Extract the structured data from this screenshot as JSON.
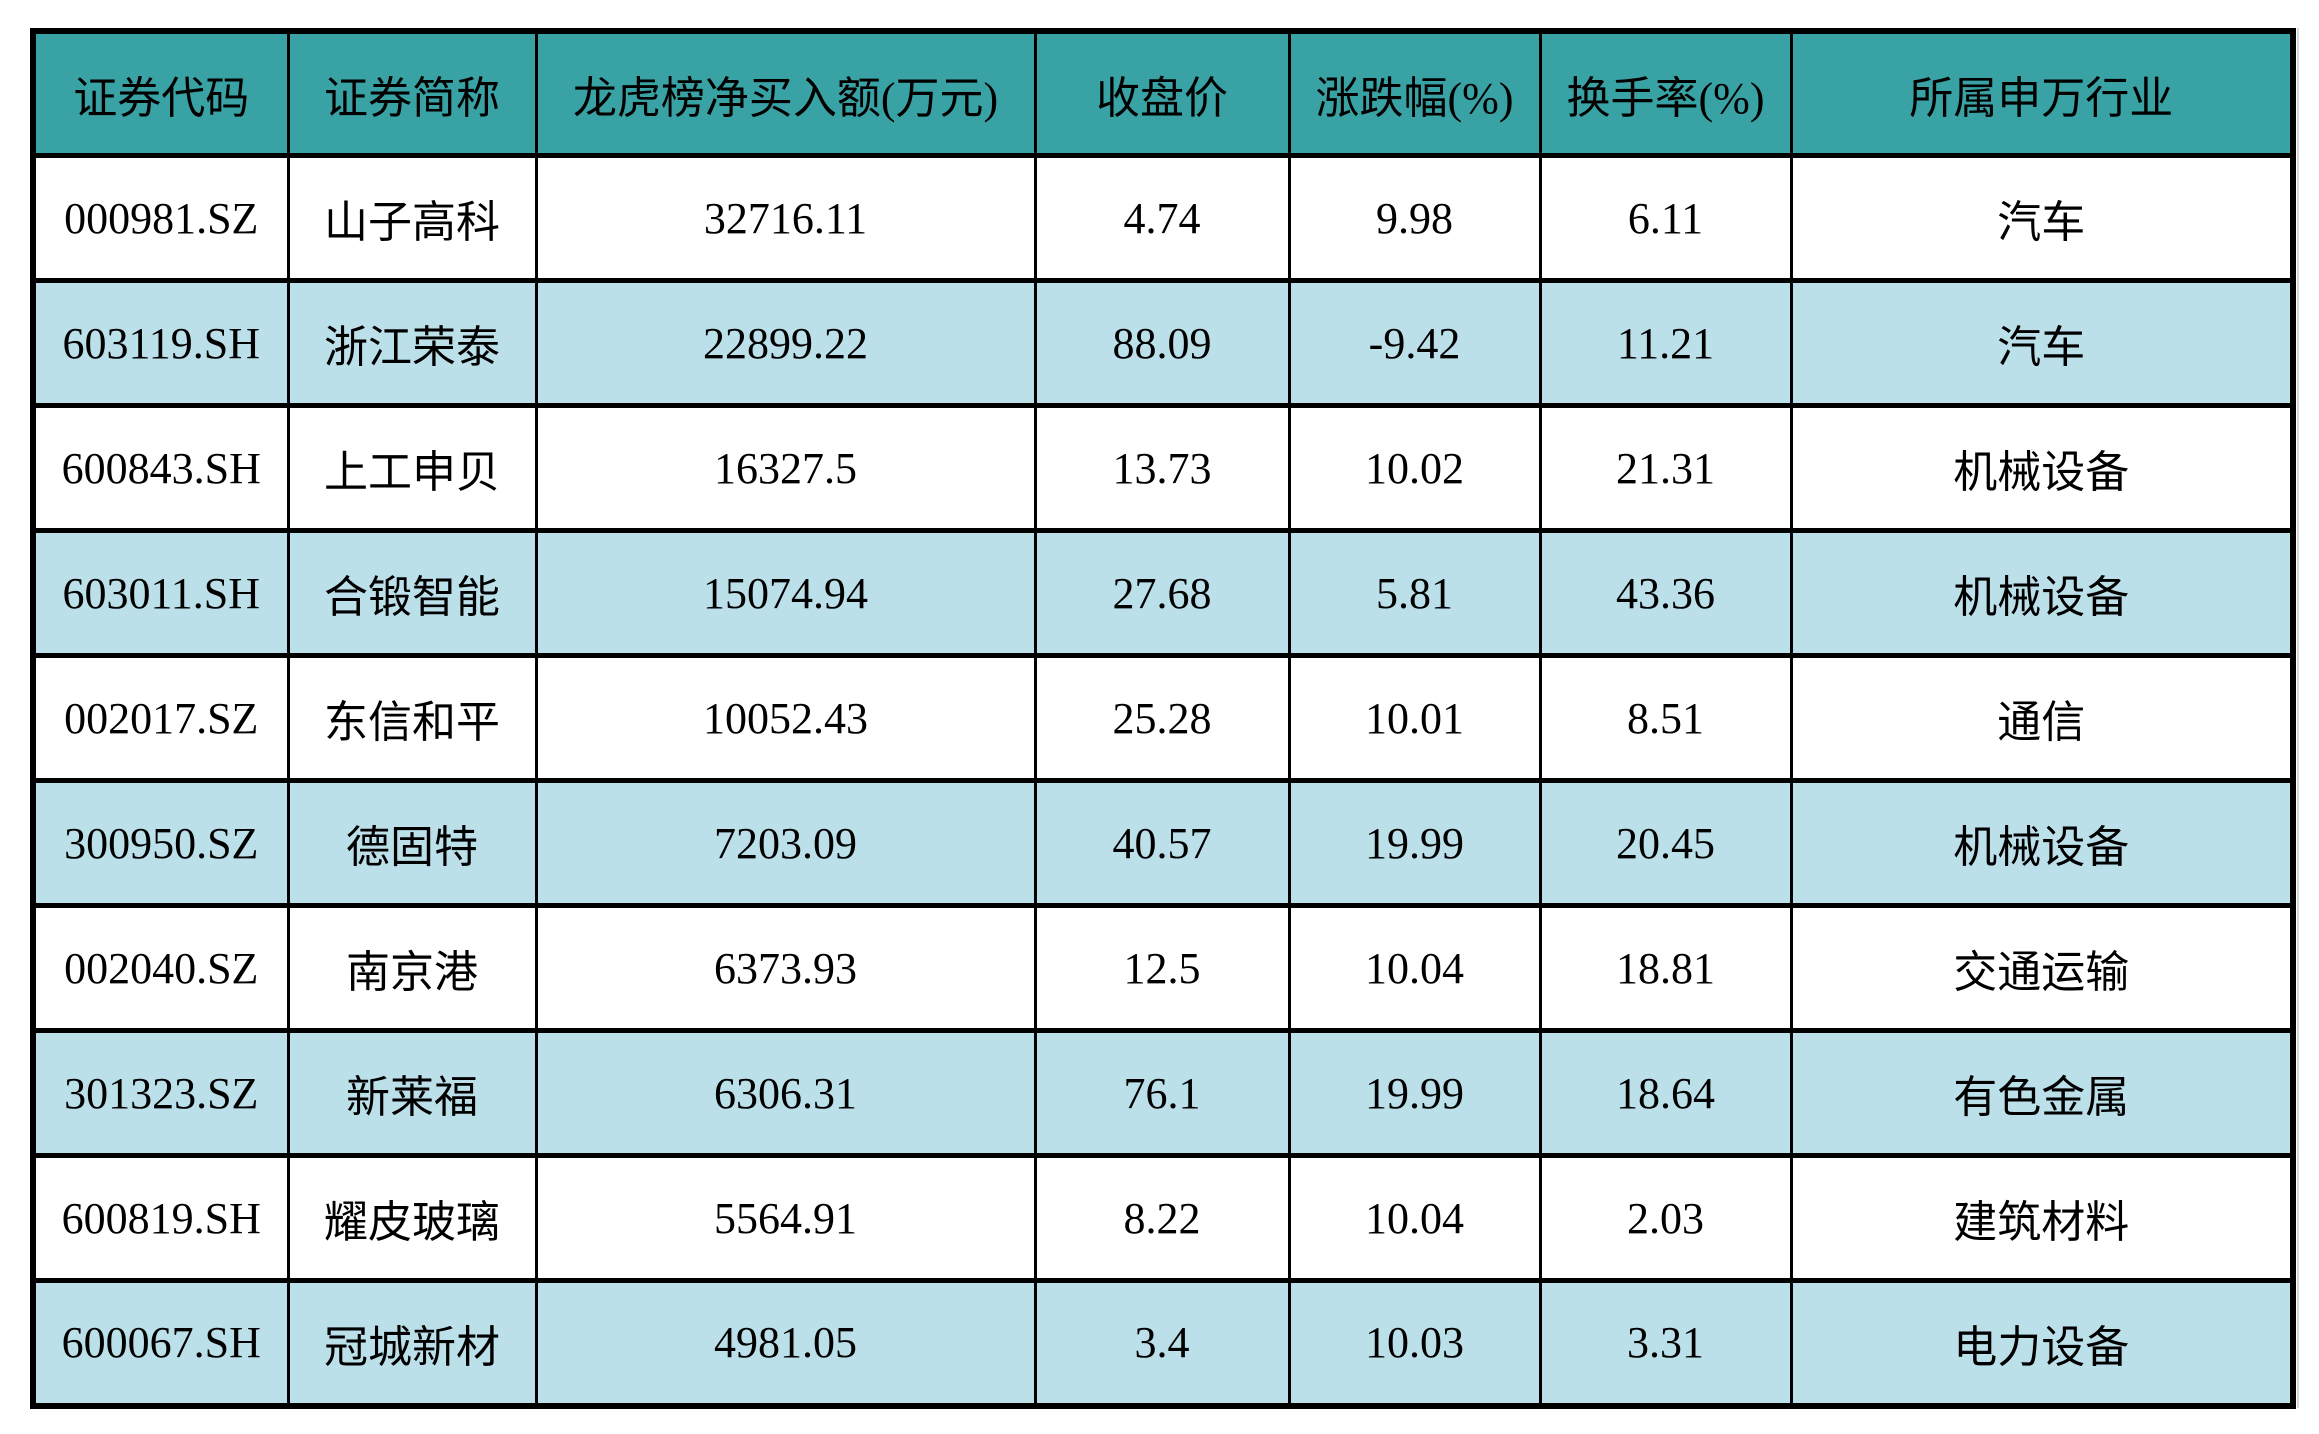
{
  "chart_data": {
    "type": "table",
    "columns": [
      {
        "key": "code",
        "label": "证券代码"
      },
      {
        "key": "name",
        "label": "证券简称"
      },
      {
        "key": "net_buy",
        "label": "龙虎榜净买入额(万元)"
      },
      {
        "key": "close",
        "label": "收盘价"
      },
      {
        "key": "change_pct",
        "label": "涨跌幅(%)"
      },
      {
        "key": "turnover_pct",
        "label": "换手率(%)"
      },
      {
        "key": "industry",
        "label": "所属申万行业"
      }
    ],
    "rows": [
      [
        "000981.SZ",
        "山子高科",
        "32716.11",
        "4.74",
        "9.98",
        "6.11",
        "汽车"
      ],
      [
        "603119.SH",
        "浙江荣泰",
        "22899.22",
        "88.09",
        "-9.42",
        "11.21",
        "汽车"
      ],
      [
        "600843.SH",
        "上工申贝",
        "16327.5",
        "13.73",
        "10.02",
        "21.31",
        "机械设备"
      ],
      [
        "603011.SH",
        "合锻智能",
        "15074.94",
        "27.68",
        "5.81",
        "43.36",
        "机械设备"
      ],
      [
        "002017.SZ",
        "东信和平",
        "10052.43",
        "25.28",
        "10.01",
        "8.51",
        "通信"
      ],
      [
        "300950.SZ",
        "德固特",
        "7203.09",
        "40.57",
        "19.99",
        "20.45",
        "机械设备"
      ],
      [
        "002040.SZ",
        "南京港",
        "6373.93",
        "12.5",
        "10.04",
        "18.81",
        "交通运输"
      ],
      [
        "301323.SZ",
        "新莱福",
        "6306.31",
        "76.1",
        "19.99",
        "18.64",
        "有色金属"
      ],
      [
        "600819.SH",
        "耀皮玻璃",
        "5564.91",
        "8.22",
        "10.04",
        "2.03",
        "建筑材料"
      ],
      [
        "600067.SH",
        "冠城新材",
        "4981.05",
        "3.4",
        "10.03",
        "3.31",
        "电力设备"
      ]
    ]
  },
  "colors": {
    "header_bg": "#39A2A4",
    "alt_row_bg": "#BCE0EA",
    "row_bg": "#FFFFFF",
    "border": "#000000",
    "text": "#000000"
  }
}
